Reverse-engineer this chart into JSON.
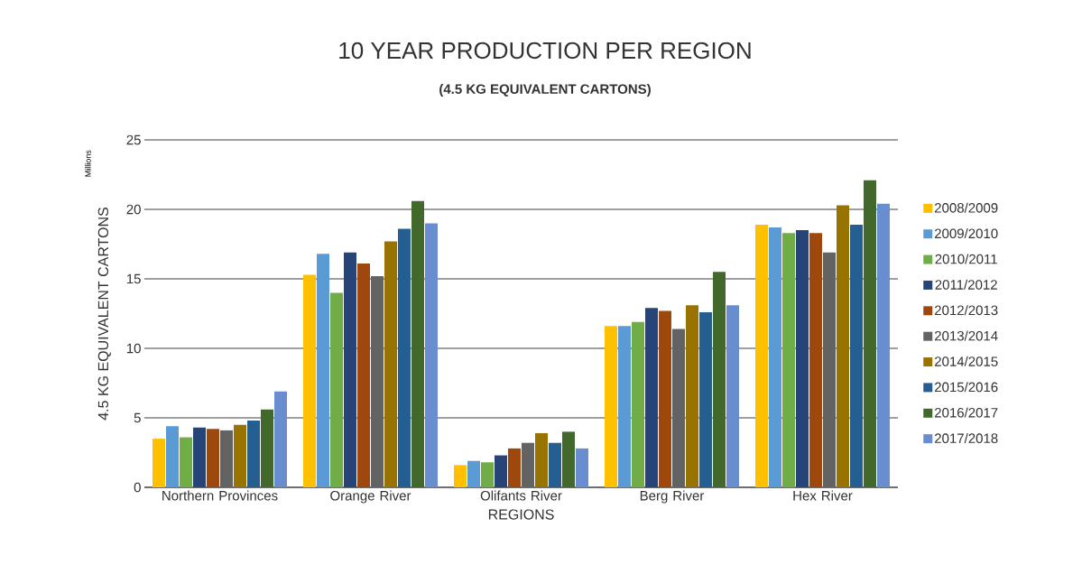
{
  "chart_data": {
    "type": "bar",
    "title": "10 YEAR PRODUCTION PER REGION",
    "subtitle": "(4.5 KG EQUIVALENT CARTONS)",
    "xlabel": "REGIONS",
    "ylabel": "4.5 KG EQUIVALENT CARTONS",
    "annotations": [
      "Millions"
    ],
    "categories": [
      "Northern Provinces",
      "Orange River",
      "Olifants River",
      "Berg River",
      "Hex River"
    ],
    "series": [
      {
        "name": "2008/2009",
        "color": "#ffc000",
        "values": [
          3.5,
          15.3,
          1.6,
          11.6,
          18.9
        ]
      },
      {
        "name": "2009/2010",
        "color": "#5b9bd5",
        "values": [
          4.4,
          16.8,
          1.9,
          11.6,
          18.7
        ]
      },
      {
        "name": "2010/2011",
        "color": "#70ad47",
        "values": [
          3.6,
          14.0,
          1.8,
          11.9,
          18.3
        ]
      },
      {
        "name": "2011/2012",
        "color": "#264478",
        "values": [
          4.3,
          16.9,
          2.3,
          12.9,
          18.5
        ]
      },
      {
        "name": "2012/2013",
        "color": "#9e480e",
        "values": [
          4.2,
          16.1,
          2.8,
          12.7,
          18.3
        ]
      },
      {
        "name": "2013/2014",
        "color": "#636363",
        "values": [
          4.1,
          15.2,
          3.2,
          11.4,
          16.9
        ]
      },
      {
        "name": "2014/2015",
        "color": "#997300",
        "values": [
          4.5,
          17.7,
          3.9,
          13.1,
          20.3
        ]
      },
      {
        "name": "2015/2016",
        "color": "#255e91",
        "values": [
          4.8,
          18.6,
          3.2,
          12.6,
          18.9
        ]
      },
      {
        "name": "2016/2017",
        "color": "#43682b",
        "values": [
          5.6,
          20.6,
          4.0,
          15.5,
          22.1
        ]
      },
      {
        "name": "2017/2018",
        "color": "#698ed0",
        "values": [
          6.9,
          19.0,
          2.8,
          13.1,
          20.4
        ]
      }
    ],
    "ylim": [
      0,
      25
    ],
    "yticks": [
      0,
      5,
      10,
      15,
      20,
      25
    ],
    "grid": "y",
    "legend": "right"
  }
}
